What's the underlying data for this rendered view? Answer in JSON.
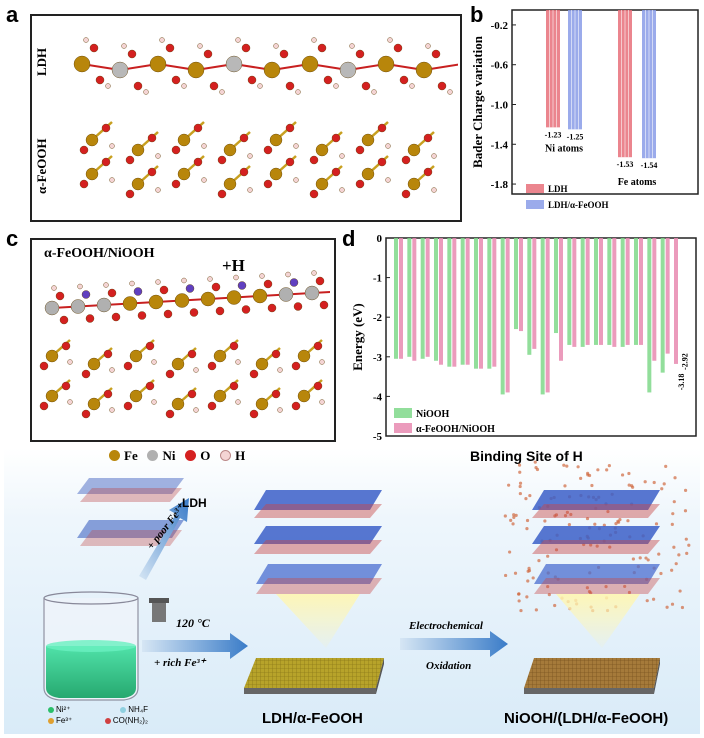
{
  "panels": {
    "a": {
      "label": "a",
      "row_labels": [
        "LDH",
        "α-FeOOH"
      ]
    },
    "b": {
      "label": "b"
    },
    "c": {
      "label": "c",
      "title": "α-FeOOH/NiOOH",
      "annotation": "+H"
    },
    "d": {
      "label": "d"
    },
    "e": {
      "label": "e",
      "atom_legend": [
        {
          "symbol": "Fe",
          "color": "#b8860b"
        },
        {
          "symbol": "Ni",
          "color": "#b0b0b0"
        },
        {
          "symbol": "O",
          "color": "#d42020"
        },
        {
          "symbol": "H",
          "color": "#f4d4d4"
        }
      ],
      "binding_title": "Binding Site of H",
      "ldh_label": "LDH",
      "poor_fe": "+ poor Fe³⁺",
      "temperature": "120 °C",
      "rich_fe": "+ rich Fe³⁺",
      "arrow2_line1": "Electrochemical",
      "arrow2_line2": "Oxidation",
      "product1": "LDH/α-FeOOH",
      "product2": "NiOOH/(LDH/α-FeOOH)",
      "beaker_legend": [
        "Ni²⁺",
        "NH₄F",
        "Fe³⁺",
        "CO(NH₂)₂"
      ]
    }
  },
  "chart_data": [
    {
      "type": "bar",
      "panel": "b",
      "ylabel": "Bader Charge variation",
      "yticks": [
        "-0.2",
        "-0.6",
        "-1.0",
        "-1.4",
        "-1.8"
      ],
      "ylim": [
        -1.9,
        -0.05
      ],
      "categories": [
        "Ni atoms",
        "Fe atoms"
      ],
      "series": [
        {
          "name": "LDH",
          "values": [
            -1.23,
            -1.53
          ],
          "color": "#e8707a"
        },
        {
          "name": "LDH/α-FeOOH",
          "values": [
            -1.25,
            -1.54
          ],
          "color": "#8a9ce8"
        }
      ],
      "data_labels": [
        [
          "-1.23",
          "-1.25"
        ],
        [
          "-1.53",
          "-1.54"
        ]
      ],
      "legend_position": "bottom"
    },
    {
      "type": "bar",
      "panel": "d",
      "ylabel": "Energy (eV)",
      "yticks": [
        "0",
        "-1",
        "-2",
        "-3",
        "-4",
        "-5"
      ],
      "ylim": [
        -5,
        0
      ],
      "series": [
        {
          "name": "NiOOH",
          "color": "#7fd88a",
          "values": [
            -3.05,
            -3.0,
            -3.05,
            -3.1,
            -3.25,
            -3.2,
            -3.3,
            -3.3,
            -3.95,
            -2.3,
            -2.95,
            -3.95,
            -2.4,
            -2.7,
            -2.75,
            -2.7,
            -2.7,
            -2.75,
            -2.7,
            -3.9,
            -3.4
          ]
        },
        {
          "name": "α-FeOOH/NiOOH",
          "color": "#e88ab0",
          "values": [
            -3.05,
            -3.1,
            -3.0,
            -3.2,
            -3.25,
            -3.2,
            -3.3,
            -3.25,
            -3.9,
            -2.35,
            -2.8,
            -3.9,
            -3.1,
            -2.75,
            -2.7,
            -2.7,
            -2.75,
            -2.7,
            -2.7,
            -3.1,
            -2.92
          ]
        },
        {
          "name": "",
          "color": "#e88ab0",
          "values": [
            -3.18
          ]
        }
      ],
      "data_labels": [
        "-3.18",
        "-2.92"
      ],
      "legend_position": "bottom-left"
    }
  ]
}
